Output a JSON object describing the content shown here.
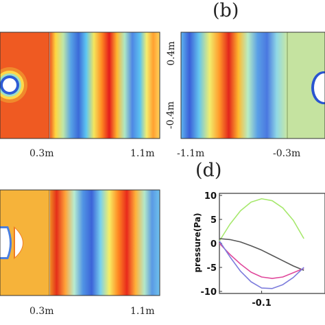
{
  "panels": {
    "b": {
      "label": "(b)",
      "x_ticks": [
        "-1.1m",
        "-0.3m"
      ],
      "y_ticks": [
        "0.4m",
        "-0.4m"
      ]
    },
    "a": {
      "x_ticks": [
        "0.3m",
        "1.1m"
      ]
    },
    "c": {
      "x_ticks": [
        "0.3m",
        "1.1m"
      ]
    },
    "d": {
      "label": "(d)",
      "chart_data": {
        "type": "line",
        "ylabel": "pressure(Pa)",
        "xlabel": "",
        "ylim": [
          -10,
          10
        ],
        "xlim": [
          -0.2,
          0.05
        ],
        "yticks": [
          "10",
          "5",
          "0",
          "-5",
          "-10"
        ],
        "xticks": [
          "-0.1"
        ],
        "series": [
          {
            "color": "#a6e86c",
            "x": [
              -0.2,
              -0.175,
              -0.15,
              -0.125,
              -0.1,
              -0.075,
              -0.05,
              -0.025,
              0.0
            ],
            "values": [
              0.5,
              4.0,
              6.8,
              8.6,
              9.3,
              8.9,
              7.4,
              4.8,
              1.0
            ]
          },
          {
            "color": "#555555",
            "x": [
              -0.2,
              -0.175,
              -0.15,
              -0.125,
              -0.1,
              -0.075,
              -0.05,
              -0.025,
              0.0
            ],
            "values": [
              1.0,
              0.8,
              0.3,
              -0.5,
              -1.4,
              -2.5,
              -3.6,
              -4.7,
              -5.6
            ]
          },
          {
            "color": "#e0489b",
            "x": [
              -0.2,
              -0.175,
              -0.15,
              -0.125,
              -0.1,
              -0.075,
              -0.05,
              -0.025,
              0.0
            ],
            "values": [
              0.0,
              -2.3,
              -4.3,
              -6.0,
              -7.0,
              -7.3,
              -7.0,
              -6.1,
              -5.2
            ]
          },
          {
            "color": "#7c7cdc",
            "x": [
              -0.2,
              -0.175,
              -0.15,
              -0.125,
              -0.1,
              -0.075,
              -0.05,
              -0.025,
              0.0
            ],
            "values": [
              0.5,
              -2.8,
              -5.8,
              -8.0,
              -9.3,
              -9.4,
              -8.6,
              -7.1,
              -5.0
            ]
          }
        ]
      }
    }
  }
}
